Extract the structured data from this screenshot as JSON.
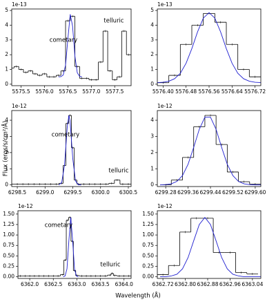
{
  "figure": {
    "xlabel": "Wavelength (Å)",
    "ylabel": "Flux (ergs/s/cm²/Å)"
  },
  "chart_data": [
    {
      "type": "line",
      "yoffset": "1e-13",
      "annotations": [
        "cometary",
        "telluric"
      ],
      "xlim": [
        5575.3,
        5577.85
      ],
      "xticks": [
        5575.5,
        {
          "value": 5576.0,
          "label": "5576.0"
        },
        5576.5,
        {
          "value": 5577.0,
          "label": "5577.0"
        },
        5577.5
      ],
      "ylim": [
        -0.1,
        5.1
      ],
      "yticks": [
        0,
        1,
        2,
        3,
        4,
        5
      ],
      "series": [
        {
          "color": "#000000",
          "drawstyle": "steps-mid",
          "x": [
            5575.3,
            5575.4,
            5575.5,
            5575.6,
            5575.7,
            5575.8,
            5575.9,
            5576.0,
            5576.1,
            5576.2,
            5576.3,
            5576.4,
            5576.5,
            5576.6,
            5576.7,
            5576.8,
            5576.9,
            5577.0,
            5577.1,
            5577.2,
            5577.3,
            5577.4,
            5577.5,
            5577.6,
            5577.7,
            5577.8
          ],
          "values": [
            1.1,
            1.2,
            1.0,
            0.8,
            0.9,
            0.7,
            0.6,
            0.7,
            0.5,
            0.5,
            0.6,
            0.9,
            4.3,
            4.6,
            1.2,
            0.4,
            0.4,
            0.3,
            0.3,
            1.5,
            3.6,
            0.9,
            0.3,
            0.5,
            3.6,
            2.0
          ]
        },
        {
          "color": "#1f1fd0",
          "drawstyle": "line",
          "x": [
            5576.3,
            5576.35,
            5576.4,
            5576.45,
            5576.5,
            5576.55,
            5576.6,
            5576.65,
            5576.7,
            5576.75,
            5576.8
          ],
          "values": [
            0.5,
            0.51,
            0.62,
            1.3,
            3.1,
            4.74,
            3.94,
            1.9,
            0.78,
            0.53,
            0.5
          ]
        }
      ]
    },
    {
      "type": "line",
      "yoffset": "1e-13",
      "xlim": [
        5576.38,
        5576.74
      ],
      "xticks": [
        {
          "value": 5576.4,
          "label": "5576.40"
        },
        5576.48,
        5576.56,
        5576.64,
        5576.72
      ],
      "ylim": [
        -0.1,
        5.1
      ],
      "yticks": [
        0,
        1,
        2,
        3,
        4,
        5
      ],
      "series": [
        {
          "color": "#000000",
          "drawstyle": "steps-mid",
          "x": [
            5576.4,
            5576.44,
            5576.48,
            5576.52,
            5576.56,
            5576.6,
            5576.64,
            5576.68,
            5576.72
          ],
          "values": [
            0.1,
            0.6,
            2.7,
            4.0,
            4.8,
            4.2,
            2.7,
            1.0,
            0.5
          ]
        },
        {
          "color": "#1f1fd0",
          "drawstyle": "line",
          "x": [
            5576.38,
            5576.4,
            5576.42,
            5576.44,
            5576.46,
            5576.48,
            5576.5,
            5576.52,
            5576.54,
            5576.56,
            5576.58,
            5576.6,
            5576.62,
            5576.64,
            5576.66,
            5576.68,
            5576.7,
            5576.72,
            5576.74
          ],
          "values": [
            0.11,
            0.13,
            0.2,
            0.37,
            0.74,
            1.42,
            2.41,
            3.55,
            4.48,
            4.85,
            4.48,
            3.55,
            2.41,
            1.42,
            0.74,
            0.37,
            0.2,
            0.13,
            0.11
          ]
        }
      ]
    },
    {
      "type": "line",
      "yoffset": "1e-12",
      "annotations": [
        "cometary",
        "telluric"
      ],
      "xlim": [
        6298.4,
        6300.55
      ],
      "xticks": [
        6298.5,
        {
          "value": 6299.0,
          "label": "6299.0"
        },
        6299.5,
        {
          "value": 6300.0,
          "label": "6300.0"
        },
        6300.5
      ],
      "ylim": [
        -0.1,
        4.6
      ],
      "yticks": [
        0,
        1,
        2,
        3,
        4
      ],
      "series": [
        {
          "color": "#000000",
          "drawstyle": "steps-mid",
          "x": [
            6298.4,
            6298.5,
            6298.6,
            6298.7,
            6298.8,
            6298.9,
            6299.0,
            6299.1,
            6299.2,
            6299.3,
            6299.35,
            6299.4,
            6299.45,
            6299.5,
            6299.55,
            6299.6,
            6299.7,
            6299.8,
            6299.9,
            6300.0,
            6300.1,
            6300.2,
            6300.3,
            6300.4,
            6300.5
          ],
          "values": [
            0.05,
            0.05,
            0.05,
            0.05,
            0.05,
            0.05,
            0.05,
            0.05,
            0.05,
            0.1,
            1.2,
            3.8,
            4.3,
            2.3,
            0.3,
            0.05,
            0.05,
            0.05,
            0.05,
            0.05,
            0.05,
            0.1,
            0.3,
            0.05,
            0.05
          ]
        },
        {
          "color": "#1f1fd0",
          "drawstyle": "line",
          "x": [
            6299.25,
            6299.3,
            6299.35,
            6299.4,
            6299.43,
            6299.45,
            6299.5,
            6299.55,
            6299.6,
            6299.65
          ],
          "values": [
            0.0,
            0.15,
            1.2,
            3.59,
            4.3,
            3.97,
            1.61,
            0.24,
            0.01,
            0.0
          ]
        }
      ]
    },
    {
      "type": "line",
      "yoffset": "1e-12",
      "xlim": [
        6299.25,
        6299.62
      ],
      "xticks": [
        6299.28,
        6299.36,
        6299.44,
        6299.52,
        {
          "value": 6299.6,
          "label": "6299.60"
        }
      ],
      "ylim": [
        -0.1,
        4.6
      ],
      "yticks": [
        0,
        1,
        2,
        3,
        4
      ],
      "series": [
        {
          "color": "#000000",
          "drawstyle": "steps-mid",
          "x": [
            6299.28,
            6299.32,
            6299.36,
            6299.4,
            6299.44,
            6299.48,
            6299.52,
            6299.56,
            6299.6
          ],
          "values": [
            0.0,
            0.3,
            1.7,
            3.6,
            4.3,
            2.5,
            0.8,
            0.2,
            0.05
          ]
        },
        {
          "color": "#1f1fd0",
          "drawstyle": "line",
          "x": [
            6299.26,
            6299.28,
            6299.3,
            6299.32,
            6299.34,
            6299.36,
            6299.38,
            6299.4,
            6299.42,
            6299.44,
            6299.46,
            6299.48,
            6299.5,
            6299.52,
            6299.54,
            6299.56,
            6299.58,
            6299.6,
            6299.62
          ],
          "values": [
            0.0,
            0.02,
            0.07,
            0.22,
            0.58,
            1.28,
            2.32,
            3.44,
            4.19,
            4.19,
            3.44,
            2.32,
            1.28,
            0.58,
            0.22,
            0.07,
            0.02,
            0.0,
            0.0
          ]
        }
      ]
    },
    {
      "type": "line",
      "yoffset": "1e-12",
      "annotations": [
        "cometary",
        "telluric"
      ],
      "xlim": [
        6361.75,
        6364.15
      ],
      "xticks": [
        {
          "value": 6362.0,
          "label": "6362.0"
        },
        6362.5,
        {
          "value": 6363.0,
          "label": "6363.0"
        },
        6363.5,
        {
          "value": 6364.0,
          "label": "6364.0"
        }
      ],
      "ylim": [
        -0.04,
        1.58
      ],
      "yticks": [
        {
          "value": 0,
          "label": "0.00"
        },
        0.25,
        {
          "value": 0.5,
          "label": "0.50"
        },
        0.75,
        {
          "value": 1,
          "label": "1.00"
        },
        1.25,
        {
          "value": 1.5,
          "label": "1.50"
        }
      ],
      "series": [
        {
          "color": "#000000",
          "drawstyle": "steps-mid",
          "x": [
            6361.8,
            6361.9,
            6362.0,
            6362.1,
            6362.2,
            6362.3,
            6362.4,
            6362.5,
            6362.6,
            6362.7,
            6362.75,
            6362.8,
            6362.85,
            6362.9,
            6362.95,
            6363.0,
            6363.1,
            6363.2,
            6363.3,
            6363.4,
            6363.5,
            6363.6,
            6363.7,
            6363.75,
            6363.8,
            6363.9,
            6364.0,
            6364.1
          ],
          "values": [
            0.02,
            0.02,
            0.02,
            0.02,
            0.02,
            0.02,
            0.02,
            0.02,
            0.02,
            0.05,
            0.4,
            1.35,
            1.42,
            0.85,
            0.15,
            0.03,
            0.02,
            0.02,
            0.02,
            0.02,
            0.02,
            0.02,
            0.04,
            0.08,
            0.03,
            0.02,
            0.02,
            0.02
          ]
        },
        {
          "color": "#1f1fd0",
          "drawstyle": "line",
          "x": [
            6362.71,
            6362.75,
            6362.79,
            6362.83,
            6362.87,
            6362.91,
            6362.95,
            6362.99,
            6363.03
          ],
          "values": [
            0.0,
            0.02,
            0.19,
            0.86,
            1.42,
            0.86,
            0.19,
            0.02,
            0.0
          ]
        }
      ]
    },
    {
      "type": "line",
      "yoffset": "1e-12",
      "xlim": [
        6362.7,
        6363.07
      ],
      "xticks": [
        6362.72,
        {
          "value": 6362.8,
          "label": "6362.80"
        },
        6362.88,
        6362.96,
        6363.04
      ],
      "ylim": [
        -0.04,
        1.58
      ],
      "yticks": [
        {
          "value": 0,
          "label": "0.00"
        },
        0.25,
        {
          "value": 0.5,
          "label": "0.50"
        },
        0.75,
        {
          "value": 1,
          "label": "1.00"
        },
        1.25,
        {
          "value": 1.5,
          "label": "1.50"
        }
      ],
      "series": [
        {
          "color": "#000000",
          "drawstyle": "steps-mid",
          "x": [
            6362.72,
            6362.76,
            6362.8,
            6362.84,
            6362.88,
            6362.92,
            6362.96,
            6363.0,
            6363.04
          ],
          "values": [
            0.05,
            0.27,
            1.07,
            1.4,
            1.4,
            0.58,
            0.58,
            0.1,
            0.07
          ]
        },
        {
          "color": "#1f1fd0",
          "drawstyle": "line",
          "x": [
            6362.71,
            6362.73,
            6362.75,
            6362.77,
            6362.79,
            6362.81,
            6362.83,
            6362.85,
            6362.87,
            6362.89,
            6362.91,
            6362.93,
            6362.95,
            6362.97,
            6362.99,
            6363.01,
            6363.03,
            6363.05,
            6363.07
          ],
          "values": [
            0.0,
            0.0,
            0.02,
            0.06,
            0.19,
            0.46,
            0.86,
            1.25,
            1.42,
            1.25,
            0.86,
            0.46,
            0.19,
            0.06,
            0.02,
            0.0,
            0.0,
            0.0,
            0.0
          ]
        }
      ]
    }
  ]
}
